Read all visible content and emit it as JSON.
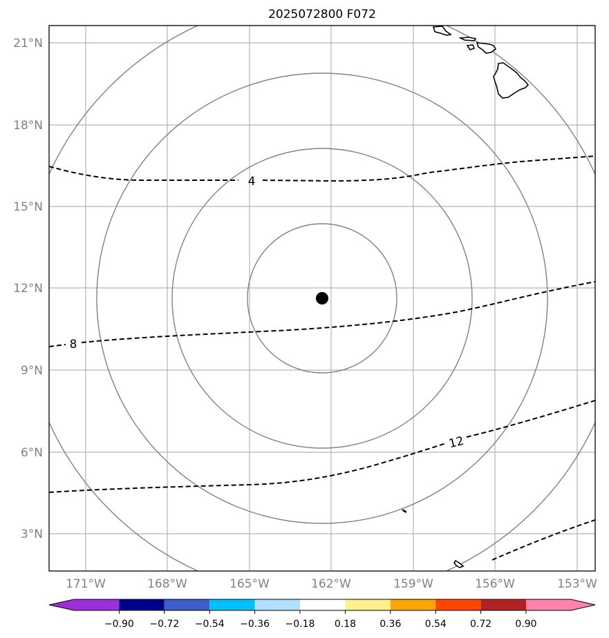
{
  "title": "2025072800 F072",
  "lat_ticks": [
    "21°N",
    "18°N",
    "15°N",
    "12°N",
    "9°N",
    "6°N",
    "3°N"
  ],
  "lon_ticks": [
    "171°W",
    "168°W",
    "165°W",
    "162°W",
    "159°W",
    "156°W",
    "153°W"
  ],
  "contour_labels": [
    "4",
    "8",
    "12"
  ],
  "colorbar": {
    "colors": [
      "#9b30d9",
      "#00008b",
      "#3a5fcd",
      "#00bfff",
      "#b0e0ff",
      "#ffffff",
      "#fff08c",
      "#ffa500",
      "#ff4500",
      "#b22222",
      "#ff82ab"
    ],
    "tick_labels": [
      "−0.90",
      "−0.72",
      "−0.54",
      "−0.36",
      "−0.18",
      "0.18",
      "0.36",
      "0.54",
      "0.72",
      "0.90"
    ]
  },
  "colors": {
    "grid": "#b3b3b3",
    "range_rings": "#808080",
    "contours": "#000000",
    "tick_text": "#808080"
  }
}
